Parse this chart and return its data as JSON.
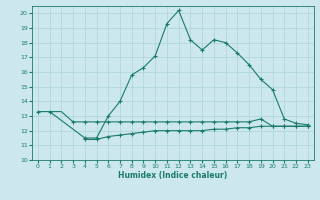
{
  "xlabel": "Humidex (Indice chaleur)",
  "bg_color": "#cce8ec",
  "grid_color": "#aad4d8",
  "line_color": "#1a7a6e",
  "xlim": [
    -0.5,
    23.5
  ],
  "ylim": [
    10,
    20.5
  ],
  "xticks": [
    0,
    1,
    2,
    3,
    4,
    5,
    6,
    7,
    8,
    9,
    10,
    11,
    12,
    13,
    14,
    15,
    16,
    17,
    18,
    19,
    20,
    21,
    22,
    23
  ],
  "yticks": [
    10,
    11,
    12,
    13,
    14,
    15,
    16,
    17,
    18,
    19,
    20
  ],
  "line1_x": [
    0,
    1,
    4,
    5,
    6,
    7,
    8,
    9,
    10,
    11,
    12,
    13,
    14,
    15,
    16,
    17,
    18,
    19,
    20,
    21,
    22,
    23
  ],
  "line1_y": [
    13.3,
    13.3,
    11.5,
    11.5,
    13.0,
    14.0,
    15.8,
    16.3,
    17.1,
    19.3,
    20.2,
    18.2,
    17.5,
    18.2,
    18.0,
    17.3,
    16.5,
    15.5,
    14.8,
    12.8,
    12.5,
    12.4
  ],
  "line2_x": [
    3,
    4,
    5,
    6,
    7,
    8,
    9,
    10,
    11,
    12,
    13,
    14,
    15,
    16,
    17,
    18,
    19,
    20,
    21,
    22,
    23
  ],
  "line2_y": [
    12.6,
    12.6,
    12.6,
    12.6,
    12.6,
    12.6,
    12.6,
    12.6,
    12.6,
    12.6,
    12.6,
    12.6,
    12.6,
    12.6,
    12.6,
    12.6,
    12.8,
    12.3,
    12.3,
    12.3,
    12.3
  ],
  "line3_x": [
    4,
    5,
    6,
    7,
    8,
    9,
    10,
    11,
    12,
    13,
    14,
    15,
    16,
    17,
    18,
    19,
    20,
    21,
    22,
    23
  ],
  "line3_y": [
    11.4,
    11.4,
    11.6,
    11.7,
    11.8,
    11.9,
    12.0,
    12.0,
    12.0,
    12.0,
    12.0,
    12.1,
    12.1,
    12.2,
    12.2,
    12.3,
    12.3,
    12.3,
    12.3,
    12.3
  ],
  "line4_x": [
    1,
    2,
    3
  ],
  "line4_y": [
    13.3,
    13.3,
    12.6
  ],
  "marker_size": 3,
  "line_width": 0.8
}
